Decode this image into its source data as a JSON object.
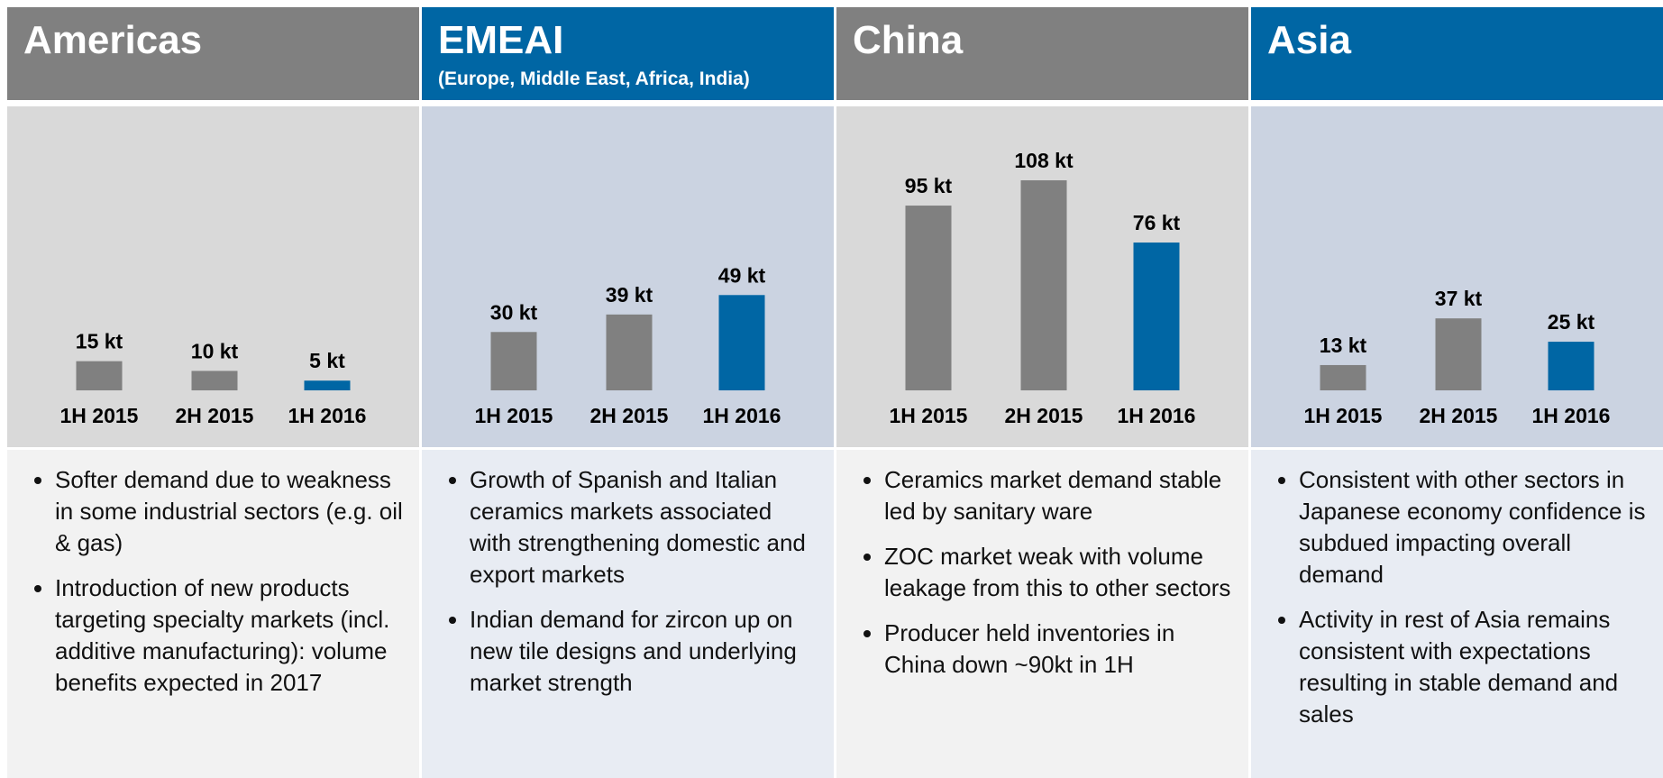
{
  "chart_data": [
    {
      "type": "bar",
      "title": "Americas",
      "categories": [
        "1H 2015",
        "2H 2015",
        "1H 2016"
      ],
      "values": [
        15,
        10,
        5
      ],
      "value_labels": [
        "15 kt",
        "10 kt",
        "5 kt"
      ],
      "colors": [
        "#808080",
        "#808080",
        "#0066a4"
      ],
      "notes": [
        "Softer demand due to weakness in some industrial sectors (e.g. oil & gas)",
        "Introduction of new products targeting specialty markets (incl. additive manufacturing): volume benefits expected in 2017"
      ]
    },
    {
      "type": "bar",
      "title": "EMEAI",
      "subtitle": "(Europe, Middle East, Africa, India)",
      "categories": [
        "1H 2015",
        "2H 2015",
        "1H 2016"
      ],
      "values": [
        30,
        39,
        49
      ],
      "value_labels": [
        "30 kt",
        "39 kt",
        "49 kt"
      ],
      "colors": [
        "#808080",
        "#808080",
        "#0066a4"
      ],
      "notes": [
        "Growth of Spanish and Italian ceramics markets associated with strengthening domestic and export markets",
        "Indian demand for zircon up on new tile designs and underlying market strength"
      ]
    },
    {
      "type": "bar",
      "title": "China",
      "categories": [
        "1H 2015",
        "2H 2015",
        "1H 2016"
      ],
      "values": [
        95,
        108,
        76
      ],
      "value_labels": [
        "95 kt",
        "108 kt",
        "76 kt"
      ],
      "colors": [
        "#808080",
        "#808080",
        "#0066a4"
      ],
      "notes": [
        "Ceramics market demand stable led by sanitary ware",
        "ZOC market weak with volume leakage from this to other sectors",
        "Producer held inventories in China down ~90kt in 1H"
      ]
    },
    {
      "type": "bar",
      "title": "Asia",
      "categories": [
        "1H 2015",
        "2H 2015",
        "1H 2016"
      ],
      "values": [
        13,
        37,
        25
      ],
      "value_labels": [
        "13 kt",
        "37 kt",
        "25 kt"
      ],
      "colors": [
        "#808080",
        "#808080",
        "#0066a4"
      ],
      "notes": [
        "Consistent with other sectors in Japanese economy confidence is subdued impacting overall demand",
        "Activity in rest of Asia remains consistent with expectations resulting in stable demand and sales"
      ]
    }
  ]
}
